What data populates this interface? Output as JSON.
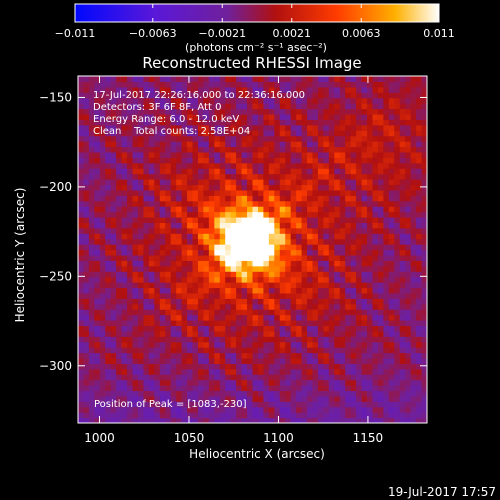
{
  "chart_data": {
    "type": "heatmap",
    "title": "Reconstructed RHESSI Image",
    "xlabel": "Heliocentric X (arcsec)",
    "ylabel": "Heliocentric Y (arcsec)",
    "xlim": [
      988,
      1183
    ],
    "ylim": [
      -332,
      -138
    ],
    "x_ticks": [
      1000,
      1050,
      1100,
      1150
    ],
    "x_tick_labels": [
      "1000",
      "1050",
      "1100",
      "1150"
    ],
    "y_ticks": [
      -150,
      -200,
      -250,
      -300
    ],
    "y_tick_labels": [
      "−150",
      "−200",
      "−250",
      "−300"
    ],
    "colorbar": {
      "ticks": [
        -0.011,
        -0.0063,
        -0.0021,
        0.0021,
        0.0063,
        0.011
      ],
      "tick_labels": [
        "−0.011",
        "−0.0063",
        "−0.0021",
        "0.0021",
        "0.0063",
        "0.011"
      ],
      "unit_label": "(photons cm⁻² s⁻¹ asec⁻²)",
      "range": [
        -0.011,
        0.011
      ],
      "colormap": "blue-purple-red-yellow-white"
    },
    "peak": {
      "x": 1083,
      "y": -230
    },
    "annotations": [
      "17-Jul-2017 22:26:16.000 to 22:36:16.000",
      "Detectors: 3F 6F 8F, Att 0",
      "Energy Range: 6.0 - 12.0 keV",
      "Clean    Total counts: 2.58E+04"
    ],
    "peak_label": "Position of Peak = [1083,-230]"
  },
  "footer": {
    "timestamp": "19-Jul-2017 17:57"
  },
  "colors": {
    "background": "#000000",
    "axes": "#ffffff"
  }
}
